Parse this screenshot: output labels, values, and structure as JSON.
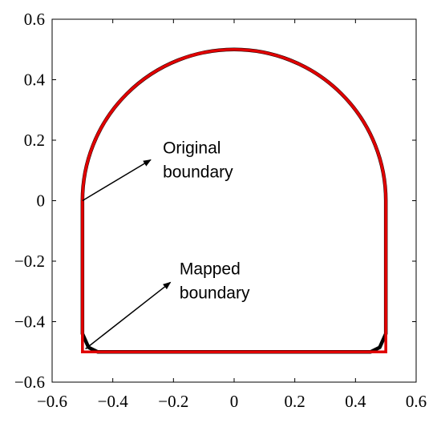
{
  "chart_data": {
    "type": "line",
    "title": "",
    "xlabel": "",
    "ylabel": "",
    "xlim": [
      -0.6,
      0.6
    ],
    "ylim": [
      -0.6,
      0.6
    ],
    "xticks": [
      -0.6,
      -0.4,
      -0.2,
      0,
      0.2,
      0.4,
      0.6
    ],
    "yticks": [
      -0.6,
      -0.4,
      -0.2,
      0,
      0.2,
      0.4,
      0.6
    ],
    "xtick_labels": [
      "−0.6",
      "−0.4",
      "−0.2",
      "0",
      "0.2",
      "0.4",
      "0.6"
    ],
    "ytick_labels": [
      "−0.6",
      "−0.4",
      "−0.2",
      "0",
      "0.2",
      "0.4",
      "0.6"
    ],
    "grid": false,
    "series": [
      {
        "name": "Original boundary",
        "color": "#e00000",
        "shape": "rectangle with semicircular top",
        "x": [
          -0.5,
          -0.5,
          0.5,
          0.5
        ],
        "y": [
          0,
          -0.5,
          -0.5,
          0
        ],
        "arc": {
          "center": [
            0,
            0
          ],
          "radius": 0.5,
          "from_deg": 0,
          "to_deg": 180
        }
      },
      {
        "name": "Mapped boundary",
        "color": "#000000",
        "shape": "rectangle with semicircular top, rounded bottom corners",
        "x": [
          -0.5,
          -0.5,
          -0.48,
          -0.45,
          0.45,
          0.48,
          0.5,
          0.5
        ],
        "y": [
          0,
          -0.44,
          -0.485,
          -0.5,
          -0.5,
          -0.485,
          -0.44,
          0
        ],
        "arc": {
          "center": [
            0,
            0
          ],
          "radius": 0.5,
          "from_deg": 0,
          "to_deg": 180
        }
      }
    ],
    "annotations": [
      {
        "text_lines": [
          "Original",
          "boundary"
        ],
        "text_at": [
          -0.235,
          0.135
        ],
        "arrow_from": [
          -0.5,
          0.0
        ],
        "arrow_to": [
          -0.275,
          0.135
        ]
      },
      {
        "text_lines": [
          "Mapped",
          "boundary"
        ],
        "text_at": [
          -0.18,
          -0.265
        ],
        "arrow_from": [
          -0.49,
          -0.49
        ],
        "arrow_to": [
          -0.21,
          -0.27
        ]
      }
    ]
  }
}
